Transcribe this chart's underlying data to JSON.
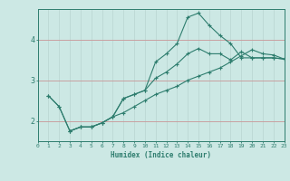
{
  "xlabel": "Humidex (Indice chaleur)",
  "bg_color": "#cce8e4",
  "line_color": "#2e7d6e",
  "grid_color_y": "#c8a0a0",
  "grid_color_x": "#b8d4d0",
  "xlim": [
    0,
    23
  ],
  "ylim": [
    1.5,
    4.75
  ],
  "xticks": [
    0,
    1,
    2,
    3,
    4,
    5,
    6,
    7,
    8,
    9,
    10,
    11,
    12,
    13,
    14,
    15,
    16,
    17,
    18,
    19,
    20,
    21,
    22,
    23
  ],
  "yticks": [
    2,
    3,
    4
  ],
  "line1_x": [
    1,
    2,
    3,
    4,
    5,
    6,
    7,
    8,
    9,
    10,
    11,
    12,
    13,
    14,
    15,
    16,
    17,
    18,
    19,
    20,
    21,
    22,
    23
  ],
  "line1_y": [
    2.62,
    2.35,
    1.75,
    1.85,
    1.85,
    1.95,
    2.1,
    2.55,
    2.65,
    2.75,
    3.05,
    3.2,
    3.4,
    3.65,
    3.78,
    3.65,
    3.65,
    3.5,
    3.7,
    3.55,
    3.55,
    3.55,
    3.52
  ],
  "line2_x": [
    1,
    2,
    3,
    4,
    5,
    6,
    7,
    8,
    9,
    10,
    11,
    12,
    13,
    14,
    15,
    16,
    17,
    18,
    19,
    20,
    21,
    22,
    23
  ],
  "line2_y": [
    2.62,
    2.35,
    1.75,
    1.85,
    1.85,
    1.95,
    2.1,
    2.55,
    2.65,
    2.75,
    3.45,
    3.65,
    3.9,
    4.55,
    4.65,
    4.35,
    4.1,
    3.9,
    3.55,
    3.55,
    3.55,
    3.55,
    3.52
  ],
  "line3_x": [
    3,
    4,
    5,
    6,
    7,
    8,
    9,
    10,
    11,
    12,
    13,
    14,
    15,
    16,
    17,
    18,
    19,
    20,
    21,
    22,
    23
  ],
  "line3_y": [
    1.75,
    1.85,
    1.85,
    1.95,
    2.1,
    2.2,
    2.35,
    2.5,
    2.65,
    2.75,
    2.85,
    3.0,
    3.1,
    3.2,
    3.3,
    3.45,
    3.6,
    3.75,
    3.65,
    3.62,
    3.52
  ]
}
